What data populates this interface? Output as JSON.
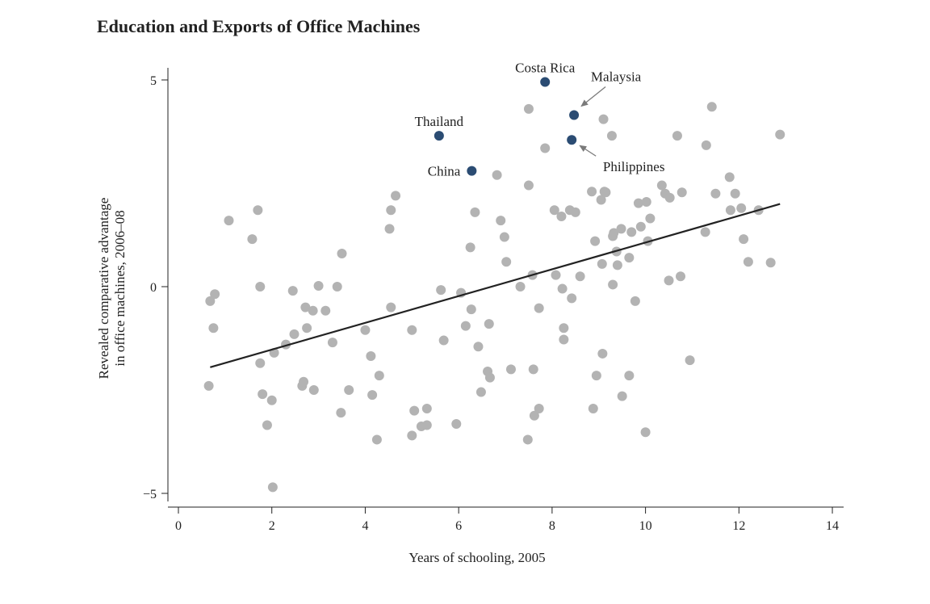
{
  "chart_data": {
    "type": "scatter",
    "title": "Education and Exports of Office Machines",
    "xlabel": "Years of schooling, 2005",
    "ylabel": [
      "Revealed comparative advantage",
      "in office machines, 2006–08"
    ],
    "xlim": [
      0,
      14
    ],
    "ylim": [
      -5,
      5
    ],
    "x_ticks": [
      0,
      2,
      4,
      6,
      8,
      10,
      12,
      14
    ],
    "y_ticks": [
      {
        "value": 5,
        "label": "5"
      },
      {
        "value": 0,
        "label": "0"
      },
      {
        "value": -5,
        "label": "−5"
      }
    ],
    "grid": false,
    "colors": {
      "points": "#b3b3b3",
      "highlight": "#2b4c73",
      "fit_line": "#222222",
      "arrow": "#7a7a7a"
    },
    "fit_line": {
      "x": [
        0.68,
        12.88
      ],
      "y": [
        -1.95,
        2.0
      ]
    },
    "highlighted": [
      {
        "label": "Costa Rica",
        "x": 7.85,
        "y": 4.95,
        "label_pos": "above",
        "arrow": false
      },
      {
        "label": "Malaysia",
        "x": 8.47,
        "y": 4.15,
        "label_pos": "upper-right",
        "arrow": true
      },
      {
        "label": "Thailand",
        "x": 5.58,
        "y": 3.65,
        "label_pos": "above",
        "arrow": false
      },
      {
        "label": "Philippines",
        "x": 8.42,
        "y": 3.55,
        "label_pos": "lower-right",
        "arrow": true
      },
      {
        "label": "China",
        "x": 6.28,
        "y": 2.8,
        "label_pos": "left",
        "arrow": false
      }
    ],
    "points": [
      [
        0.68,
        -0.35
      ],
      [
        0.78,
        -0.18
      ],
      [
        0.75,
        -1.0
      ],
      [
        0.65,
        -2.4
      ],
      [
        1.08,
        1.6
      ],
      [
        1.58,
        1.15
      ],
      [
        1.7,
        1.85
      ],
      [
        1.75,
        0.0
      ],
      [
        1.75,
        -1.85
      ],
      [
        1.8,
        -2.6
      ],
      [
        1.9,
        -3.35
      ],
      [
        2.0,
        -2.75
      ],
      [
        2.02,
        -4.85
      ],
      [
        2.05,
        -1.6
      ],
      [
        2.3,
        -1.4
      ],
      [
        2.45,
        -0.1
      ],
      [
        2.48,
        -1.15
      ],
      [
        2.65,
        -2.4
      ],
      [
        2.68,
        -2.3
      ],
      [
        2.72,
        -0.5
      ],
      [
        2.75,
        -1.0
      ],
      [
        2.88,
        -0.58
      ],
      [
        2.9,
        -2.5
      ],
      [
        3.0,
        0.02
      ],
      [
        3.15,
        -0.58
      ],
      [
        3.3,
        -1.35
      ],
      [
        3.4,
        0.0
      ],
      [
        3.48,
        -3.05
      ],
      [
        3.5,
        0.8
      ],
      [
        3.65,
        -2.5
      ],
      [
        4.0,
        -1.05
      ],
      [
        4.12,
        -1.68
      ],
      [
        4.15,
        -2.62
      ],
      [
        4.25,
        -3.7
      ],
      [
        4.3,
        -2.15
      ],
      [
        4.52,
        1.4
      ],
      [
        4.55,
        1.85
      ],
      [
        4.55,
        -0.5
      ],
      [
        4.65,
        2.2
      ],
      [
        5.0,
        -1.05
      ],
      [
        5.05,
        -3.0
      ],
      [
        5.0,
        -3.6
      ],
      [
        5.2,
        -3.38
      ],
      [
        5.32,
        -2.95
      ],
      [
        5.32,
        -3.35
      ],
      [
        5.62,
        -0.08
      ],
      [
        5.68,
        -1.3
      ],
      [
        5.95,
        -3.32
      ],
      [
        6.05,
        -0.15
      ],
      [
        6.15,
        -0.95
      ],
      [
        6.25,
        0.95
      ],
      [
        6.27,
        -0.55
      ],
      [
        6.35,
        1.8
      ],
      [
        6.42,
        -1.45
      ],
      [
        6.48,
        -2.55
      ],
      [
        6.62,
        -2.05
      ],
      [
        6.65,
        -0.9
      ],
      [
        6.67,
        -2.2
      ],
      [
        6.82,
        2.7
      ],
      [
        6.9,
        1.6
      ],
      [
        6.98,
        1.2
      ],
      [
        7.02,
        0.6
      ],
      [
        7.12,
        -2.0
      ],
      [
        7.32,
        0.0
      ],
      [
        7.48,
        -3.7
      ],
      [
        7.5,
        4.3
      ],
      [
        7.5,
        2.45
      ],
      [
        7.58,
        0.28
      ],
      [
        7.6,
        -2.0
      ],
      [
        7.62,
        -3.12
      ],
      [
        7.72,
        -0.52
      ],
      [
        7.72,
        -2.95
      ],
      [
        7.85,
        3.35
      ],
      [
        8.05,
        1.85
      ],
      [
        8.08,
        0.28
      ],
      [
        8.2,
        1.7
      ],
      [
        8.22,
        -0.05
      ],
      [
        8.25,
        -1.0
      ],
      [
        8.25,
        -1.28
      ],
      [
        8.38,
        1.85
      ],
      [
        8.42,
        -0.28
      ],
      [
        8.5,
        1.8
      ],
      [
        8.6,
        0.25
      ],
      [
        8.85,
        2.3
      ],
      [
        8.88,
        -2.95
      ],
      [
        8.92,
        1.1
      ],
      [
        8.95,
        -2.15
      ],
      [
        9.05,
        2.1
      ],
      [
        9.07,
        0.55
      ],
      [
        9.08,
        -1.62
      ],
      [
        9.1,
        4.05
      ],
      [
        9.12,
        2.3
      ],
      [
        9.15,
        2.28
      ],
      [
        9.28,
        3.65
      ],
      [
        9.3,
        0.05
      ],
      [
        9.3,
        1.22
      ],
      [
        9.32,
        1.3
      ],
      [
        9.38,
        0.85
      ],
      [
        9.4,
        0.52
      ],
      [
        9.48,
        1.4
      ],
      [
        9.5,
        -2.65
      ],
      [
        9.65,
        0.7
      ],
      [
        9.65,
        -2.15
      ],
      [
        9.7,
        1.32
      ],
      [
        9.78,
        -0.35
      ],
      [
        9.85,
        2.02
      ],
      [
        9.9,
        1.45
      ],
      [
        10.02,
        2.05
      ],
      [
        10.0,
        -3.52
      ],
      [
        10.05,
        1.1
      ],
      [
        10.1,
        1.65
      ],
      [
        10.35,
        2.45
      ],
      [
        10.42,
        2.25
      ],
      [
        10.5,
        0.15
      ],
      [
        10.52,
        2.15
      ],
      [
        10.68,
        3.65
      ],
      [
        10.75,
        0.25
      ],
      [
        10.78,
        2.28
      ],
      [
        10.95,
        -1.78
      ],
      [
        11.28,
        1.32
      ],
      [
        11.3,
        3.42
      ],
      [
        11.42,
        4.35
      ],
      [
        11.5,
        2.25
      ],
      [
        11.8,
        2.65
      ],
      [
        11.82,
        1.85
      ],
      [
        11.92,
        2.25
      ],
      [
        12.05,
        1.9
      ],
      [
        12.1,
        1.15
      ],
      [
        12.2,
        0.6
      ],
      [
        12.42,
        1.85
      ],
      [
        12.68,
        0.58
      ],
      [
        12.88,
        3.68
      ]
    ]
  }
}
